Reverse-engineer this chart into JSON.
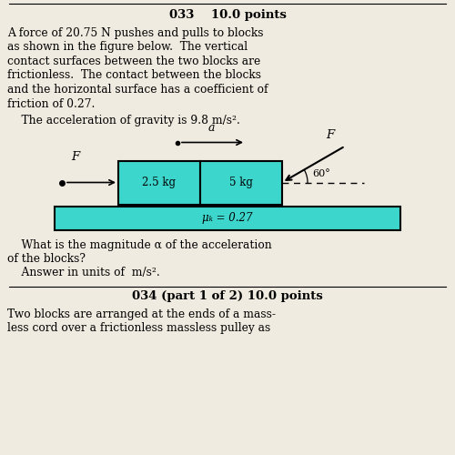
{
  "title": "033    10.0 points",
  "paragraph1": "A force of 20.75 N pushes and pulls to blocks",
  "paragraph2": "as shown in the figure below.  The vertical",
  "paragraph3": "contact surfaces between the two blocks are",
  "paragraph4": "frictionless.  The contact between the blocks",
  "paragraph5": "and the horizontal surface has a coefficient of",
  "paragraph6": "friction of 0.27.",
  "gravity_text": "    The acceleration of gravity is 9.8 m/s².",
  "question1": "    What is the magnitude α of the acceleration",
  "question2": "of the blocks?",
  "question3": "    Answer in units of  m/s².",
  "footer_title": "034 (part 1 of 2) 10.0 points",
  "footer1": "Two blocks are arranged at the ends of a mass-",
  "footer2": "less cord over a frictionless massless pulley as",
  "block1_label": "2.5 kg",
  "block2_label": "5 kg",
  "mu_label": "μₖ = 0.27",
  "F_left_label": "F",
  "F_right_label": "F",
  "a_label": "a",
  "angle_label": "60°",
  "bg_color": "#f0ebe0",
  "block_fill": "#3dd6cc",
  "block_edge": "#000000",
  "surface_fill": "#3dd6cc",
  "surface_edge": "#000000",
  "title_fontsize": 9.5,
  "body_fontsize": 8.8,
  "fig_width": 5.0,
  "fig_height": 5.0,
  "dpi": 100
}
